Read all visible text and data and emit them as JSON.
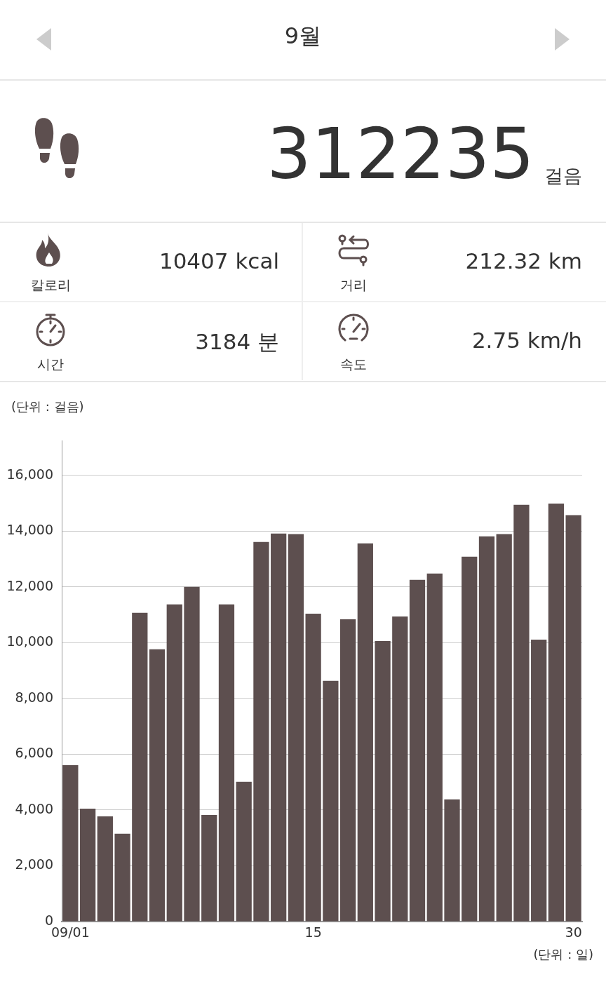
{
  "chart_data": [
    {
      "type": "other",
      "title": "9월",
      "annotations": [
        "312235",
        "걸음",
        "칼로리",
        "10407 kcal",
        "거리",
        "212.32 km",
        "시간",
        "3184 분",
        "속도",
        "2.75 km/h"
      ]
    },
    {
      "type": "bar",
      "ylabel": "(단위 : 걸음)",
      "xlabel": "(단위 : 일)",
      "categories": [
        "09/01",
        null,
        null,
        null,
        null,
        null,
        null,
        null,
        null,
        null,
        null,
        null,
        null,
        null,
        "15",
        null,
        null,
        null,
        null,
        null,
        null,
        null,
        null,
        null,
        null,
        null,
        null,
        null,
        null,
        "30"
      ],
      "values": [
        5610,
        4050,
        3770,
        3150,
        11070,
        9760,
        11370,
        12000,
        3820,
        11370,
        5010,
        13610,
        13910,
        13890,
        11040,
        8630,
        10840,
        13560,
        10060,
        10940,
        12250,
        12480,
        4380,
        13080,
        13810,
        13890,
        14940,
        10110,
        14990,
        14570
      ],
      "color": "#5d4f4f",
      "ylim": [
        0,
        17250
      ],
      "yticks": [
        0,
        {
          "value": 2000,
          "label": "2,000"
        },
        {
          "value": 4000,
          "label": "4,000"
        },
        {
          "value": 6000,
          "label": "6,000"
        },
        {
          "value": 8000,
          "label": "8,000"
        },
        {
          "value": 10000,
          "label": "10,000"
        },
        {
          "value": 12000,
          "label": "12,000"
        },
        {
          "value": 14000,
          "label": "14,000"
        },
        {
          "value": 16000,
          "label": "16,000"
        }
      ],
      "grid": "y"
    }
  ]
}
